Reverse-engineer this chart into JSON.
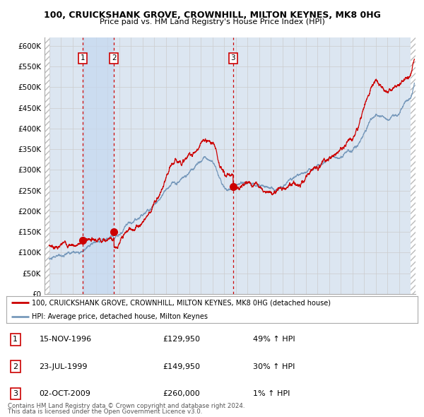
{
  "title1": "100, CRUICKSHANK GROVE, CROWNHILL, MILTON KEYNES, MK8 0HG",
  "title2": "Price paid vs. HM Land Registry's House Price Index (HPI)",
  "ylim": [
    0,
    620000
  ],
  "yticks": [
    0,
    50000,
    100000,
    150000,
    200000,
    250000,
    300000,
    350000,
    400000,
    450000,
    500000,
    550000,
    600000
  ],
  "xlim_start": 1993.6,
  "xlim_end": 2025.4,
  "sale_dates": [
    1996.88,
    1999.56,
    2009.76
  ],
  "sale_prices": [
    129950,
    149950,
    260000
  ],
  "sale_labels": [
    "1",
    "2",
    "3"
  ],
  "legend_line1": "100, CRUICKSHANK GROVE, CROWNHILL, MILTON KEYNES, MK8 0HG (detached house)",
  "legend_line2": "HPI: Average price, detached house, Milton Keynes",
  "table_data": [
    [
      "1",
      "15-NOV-1996",
      "£129,950",
      "49% ↑ HPI"
    ],
    [
      "2",
      "23-JUL-1999",
      "£149,950",
      "30% ↑ HPI"
    ],
    [
      "3",
      "02-OCT-2009",
      "£260,000",
      "1% ↑ HPI"
    ]
  ],
  "footnote1": "Contains HM Land Registry data © Crown copyright and database right 2024.",
  "footnote2": "This data is licensed under the Open Government Licence v3.0.",
  "red_color": "#cc0000",
  "blue_color": "#7799bb",
  "hpi_bg_color": "#dce6f1",
  "hatch_color": "#bbbbbb",
  "grid_color": "#cccccc",
  "vline_color": "#cc0000",
  "highlight_color": "#c5d8f0"
}
